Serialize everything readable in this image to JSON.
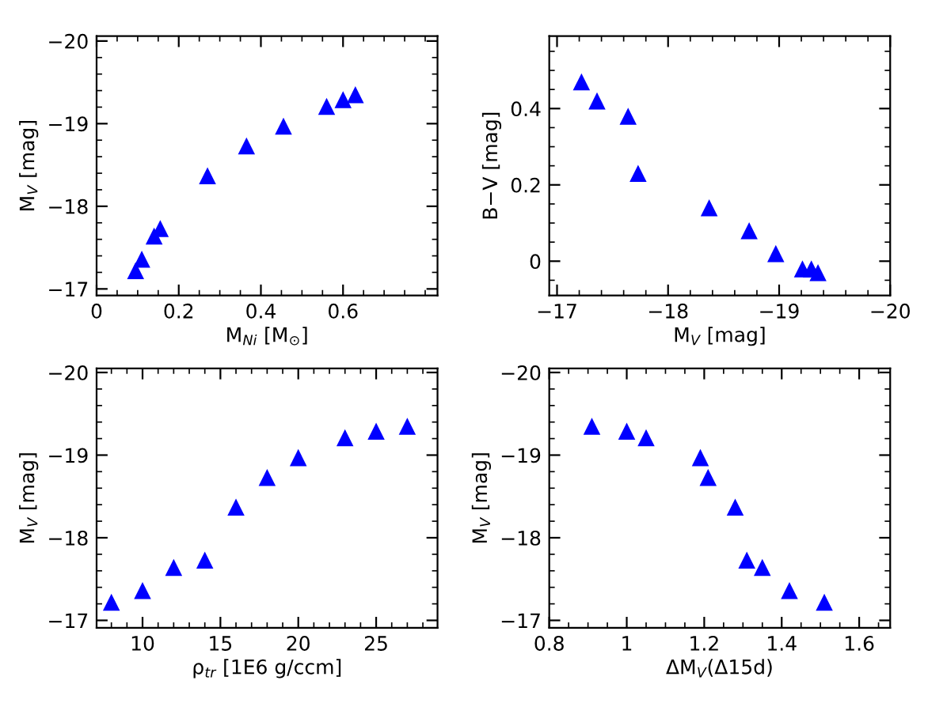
{
  "chart_data": [
    {
      "type": "scatter",
      "xlabel": "M$_{Ni}$ [M$_{⊙}$]",
      "ylabel": "M$_{V}$ [mag]",
      "marker": "triangle",
      "grid": false,
      "legend": false,
      "series": [
        {
          "color": "#0000ff",
          "x": [
            0.095,
            0.11,
            0.14,
            0.155,
            0.27,
            0.365,
            0.455,
            0.56,
            0.6,
            0.63
          ],
          "values": [
            -17.22,
            -17.36,
            -17.64,
            -17.73,
            -18.37,
            -18.73,
            -18.97,
            -19.21,
            -19.29,
            -19.35
          ]
        }
      ],
      "xlim": [
        0,
        0.83
      ],
      "xticks": [
        0,
        0.2,
        0.4,
        0.6
      ],
      "ylim": [
        -16.92,
        -20.06
      ],
      "yticks": [
        {
          "value": -17,
          "label": "−17"
        },
        {
          "value": -18,
          "label": "−18"
        },
        {
          "value": -19,
          "label": "−19"
        },
        {
          "value": -20,
          "label": "−20"
        }
      ]
    },
    {
      "type": "scatter",
      "xlabel": "M$_{V}$ [mag]",
      "ylabel": "B−V [mag]",
      "marker": "triangle",
      "grid": false,
      "legend": false,
      "series": [
        {
          "color": "#0000ff",
          "x": [
            -17.22,
            -17.36,
            -17.64,
            -17.73,
            -18.37,
            -18.73,
            -18.97,
            -19.21,
            -19.29,
            -19.35
          ],
          "values": [
            0.47,
            0.42,
            0.38,
            0.23,
            0.14,
            0.08,
            0.02,
            -0.02,
            -0.02,
            -0.03
          ]
        }
      ],
      "xlim": [
        -16.93,
        -20
      ],
      "xticks": [
        {
          "value": -17,
          "label": "−17"
        },
        {
          "value": -18,
          "label": "−18"
        },
        {
          "value": -19,
          "label": "−19"
        },
        {
          "value": -20,
          "label": "−20"
        }
      ],
      "ylim": [
        -0.09,
        0.59
      ],
      "yticks": [
        0,
        0.2,
        0.4
      ]
    },
    {
      "type": "scatter",
      "xlabel": "ρ$_{tr}$ [1E6 g/ccm]",
      "ylabel": "M$_{V}$ [mag]",
      "marker": "triangle",
      "grid": false,
      "legend": false,
      "series": [
        {
          "color": "#0000ff",
          "x": [
            8,
            10,
            12,
            14,
            16,
            18,
            20,
            23,
            25,
            27
          ],
          "values": [
            -17.22,
            -17.36,
            -17.64,
            -17.73,
            -18.37,
            -18.73,
            -18.97,
            -19.21,
            -19.29,
            -19.35
          ]
        }
      ],
      "xlim": [
        7.05,
        28.94
      ],
      "xticks": [
        10,
        15,
        20,
        25
      ],
      "ylim": [
        -16.91,
        -20.05
      ],
      "yticks": [
        {
          "value": -17,
          "label": "−17"
        },
        {
          "value": -18,
          "label": "−18"
        },
        {
          "value": -19,
          "label": "−19"
        },
        {
          "value": -20,
          "label": "−20"
        }
      ]
    },
    {
      "type": "scatter",
      "xlabel": "ΔM$_{V}$(Δ15d)",
      "ylabel": "M$_{V}$ [mag]",
      "marker": "triangle",
      "grid": false,
      "legend": false,
      "series": [
        {
          "color": "#0000ff",
          "x": [
            1.51,
            1.42,
            1.35,
            1.31,
            1.28,
            1.21,
            1.19,
            1.05,
            1.0,
            0.91
          ],
          "values": [
            -17.22,
            -17.36,
            -17.64,
            -17.73,
            -18.37,
            -18.73,
            -18.97,
            -19.21,
            -19.29,
            -19.35
          ]
        }
      ],
      "xlim": [
        0.8,
        1.68
      ],
      "xticks": [
        0.8,
        1,
        1.2,
        1.4,
        1.6
      ],
      "ylim": [
        -16.91,
        -20.05
      ],
      "yticks": [
        {
          "value": -17,
          "label": "−17"
        },
        {
          "value": -18,
          "label": "−18"
        },
        {
          "value": -19,
          "label": "−19"
        },
        {
          "value": -20,
          "label": "−20"
        }
      ]
    }
  ]
}
